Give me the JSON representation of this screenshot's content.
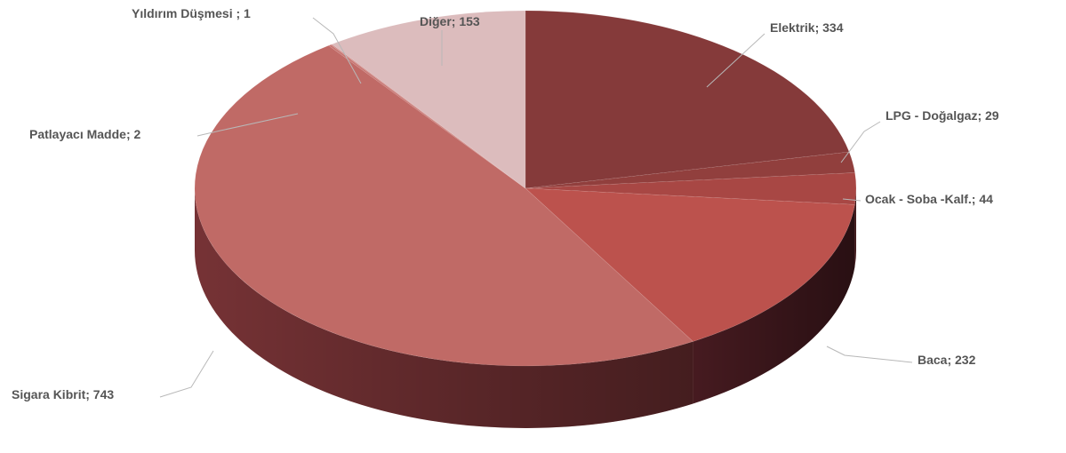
{
  "chart_data": {
    "type": "pie",
    "title": "",
    "style": "3d",
    "label_format": "{category}; {value}",
    "slices": [
      {
        "category": "Elektrik",
        "label": "Elektrik; 334",
        "value": 334,
        "color": "#853a3a",
        "side_color": "#5a2326"
      },
      {
        "category": "LPG - Doğalgaz",
        "label": "LPG - Doğalgaz; 29",
        "value": 29,
        "color": "#913f3d",
        "side_color": "#5c2427"
      },
      {
        "category": "Ocak - Soba -Kalf.",
        "label": "Ocak - Soba -Kalf.; 44",
        "value": 44,
        "color": "#a84744",
        "side_color": "#62282a"
      },
      {
        "category": "Baca",
        "label": "Baca; 232",
        "value": 232,
        "color": "#bc524d",
        "side_color": "#4a1c22"
      },
      {
        "category": "Sigara Kibrit",
        "label": "Sigara Kibrit; 743",
        "value": 743,
        "color": "#c06a66",
        "side_color": "#7c3538"
      },
      {
        "category": "Patlayacı Madde",
        "label": "Patlayacı Madde; 2",
        "value": 2,
        "color": "#c77571",
        "side_color": "#a05e5d"
      },
      {
        "category": "Yıldırım Düşmesi ",
        "label": "Yıldırım Düşmesi ; 1",
        "value": 1,
        "color": "#cd8784",
        "side_color": "#a66a69"
      },
      {
        "category": "Diğer",
        "label": "Diğer; 153",
        "value": 153,
        "color": "#dcbcbd",
        "side_color": "#b89a9b"
      }
    ]
  }
}
